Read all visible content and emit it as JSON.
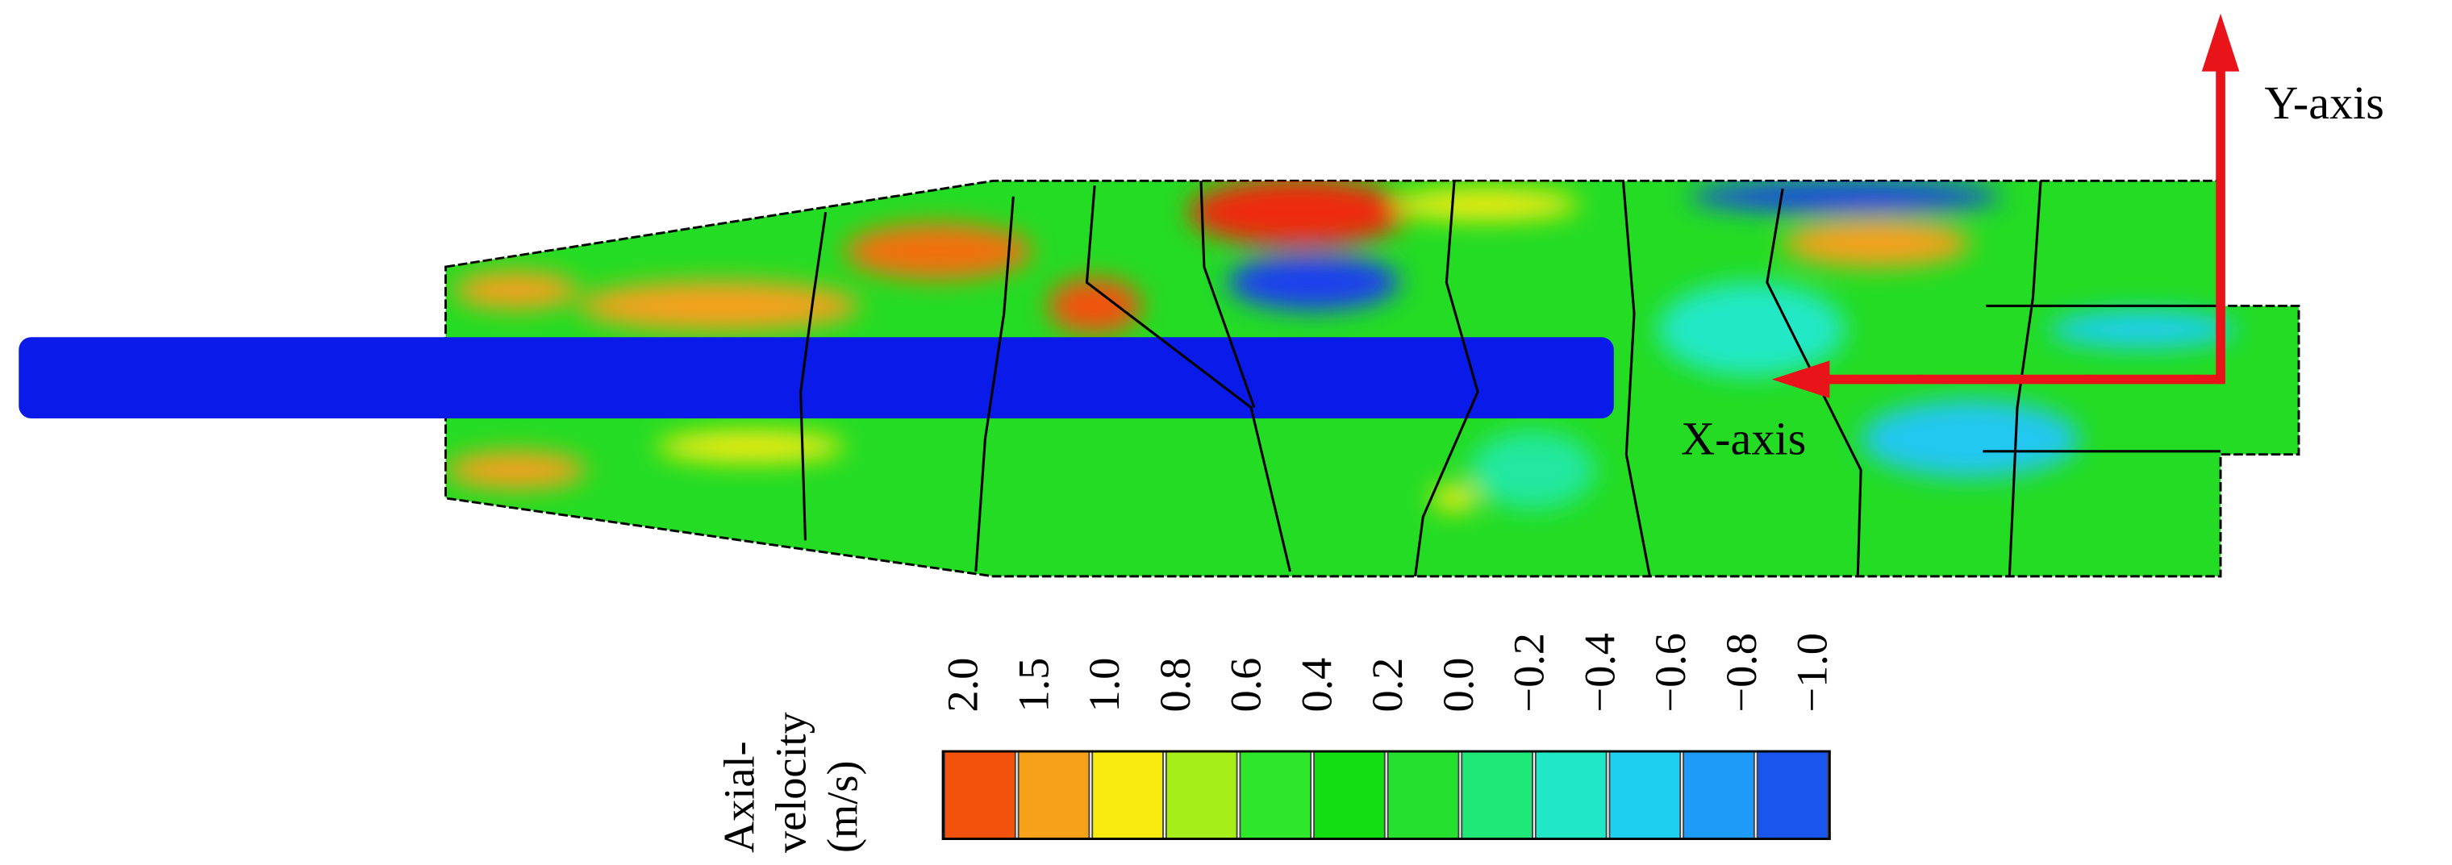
{
  "chart_data": {
    "type": "contour",
    "axis_labels": {
      "y": "Y-axis",
      "x": "X-axis"
    },
    "colorbar": {
      "title": [
        "Axial-",
        "velocity",
        "(m/s)"
      ],
      "ticks": [
        {
          "value": 2.0,
          "label": "2.0"
        },
        1.5,
        {
          "value": 1.0,
          "label": "1.0"
        },
        0.8,
        0.6,
        0.4,
        0.2,
        {
          "value": 0.0,
          "label": "0.0"
        },
        {
          "value": -0.2,
          "label": "−0.2"
        },
        {
          "value": -0.4,
          "label": "−0.4"
        },
        {
          "value": -0.6,
          "label": "−0.6"
        },
        {
          "value": -0.8,
          "label": "−0.8"
        },
        {
          "value": -1.0,
          "label": "−1.0"
        }
      ],
      "colors": [
        "#f2520c",
        "#f7a01a",
        "#faeb0f",
        "#a6ee1a",
        "#2ee62a",
        "#12de12",
        "#26e030",
        "#20e878",
        "#20e8c6",
        "#1ecff0",
        "#1e9af8",
        "#1a55ee"
      ]
    }
  }
}
